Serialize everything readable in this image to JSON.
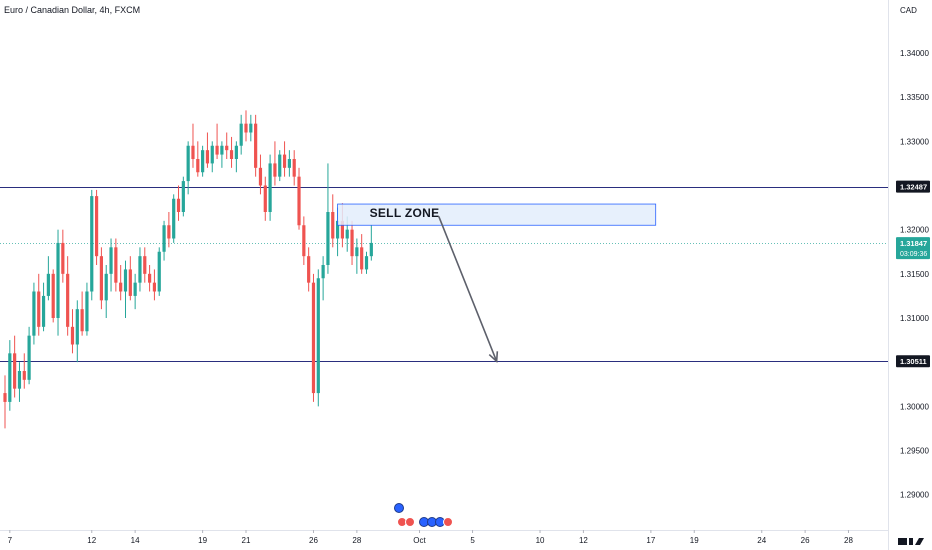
{
  "symbol_title": "Euro / Canadian Dollar, 4h, FXCM",
  "currency_label": "CAD",
  "colors": {
    "up": "#26a69a",
    "down": "#ef5350",
    "hline": "#2a2e7e",
    "zone_fill": "#e3edfc",
    "zone_stroke": "#2962ff",
    "arrow": "#5d606b",
    "price_tag": "#26a69a",
    "level_tag": "#131722"
  },
  "chart_data": {
    "type": "candlestick",
    "y_axis": {
      "min": 1.286,
      "max": 1.346,
      "ticks": [
        "1.34000",
        "1.33500",
        "1.33000",
        "1.32000",
        "1.31500",
        "1.31000",
        "1.30000",
        "1.29500",
        "1.29000"
      ],
      "tick_values": [
        1.34,
        1.335,
        1.33,
        1.32,
        1.315,
        1.31,
        1.3,
        1.295,
        1.29
      ]
    },
    "x_axis": {
      "ticks": [
        "7",
        "12",
        "14",
        "19",
        "21",
        "26",
        "28",
        "Oct",
        "5",
        "10",
        "12",
        "17",
        "19",
        "24",
        "26",
        "28"
      ],
      "tick_index": [
        1,
        18,
        27,
        41,
        50,
        64,
        73,
        86,
        97,
        111,
        120,
        134,
        143,
        157,
        166,
        175
      ]
    },
    "horizontal_levels": [
      {
        "label": "1.32487",
        "value": 1.32487
      },
      {
        "label": "1.30511",
        "value": 1.30511
      }
    ],
    "current_price": {
      "label": "1.31847",
      "countdown": "03:09:36",
      "value": 1.31847
    },
    "sell_zone": {
      "label": "SELL ZONE",
      "from_index": 69,
      "to_index": 135,
      "top": 1.3229,
      "bottom": 1.3205
    },
    "projection_arrow": {
      "from_index": 90,
      "from_value": 1.3215,
      "to_index": 102,
      "to_value": 1.3051
    },
    "candles": [
      [
        1.3015,
        1.3035,
        1.2975,
        1.3005
      ],
      [
        1.3005,
        1.3075,
        1.2995,
        1.306
      ],
      [
        1.306,
        1.308,
        1.301,
        1.302
      ],
      [
        1.302,
        1.305,
        1.3005,
        1.304
      ],
      [
        1.304,
        1.306,
        1.302,
        1.303
      ],
      [
        1.303,
        1.309,
        1.3025,
        1.308
      ],
      [
        1.308,
        1.314,
        1.307,
        1.313
      ],
      [
        1.313,
        1.315,
        1.308,
        1.309
      ],
      [
        1.309,
        1.314,
        1.3085,
        1.3125
      ],
      [
        1.3125,
        1.317,
        1.312,
        1.315
      ],
      [
        1.315,
        1.3155,
        1.3095,
        1.31
      ],
      [
        1.31,
        1.32,
        1.308,
        1.3185
      ],
      [
        1.3185,
        1.32,
        1.314,
        1.315
      ],
      [
        1.315,
        1.317,
        1.308,
        1.309
      ],
      [
        1.309,
        1.311,
        1.306,
        1.307
      ],
      [
        1.307,
        1.312,
        1.305,
        1.311
      ],
      [
        1.311,
        1.313,
        1.308,
        1.3085
      ],
      [
        1.3085,
        1.314,
        1.308,
        1.313
      ],
      [
        1.313,
        1.3245,
        1.312,
        1.3238
      ],
      [
        1.3238,
        1.3245,
        1.316,
        1.317
      ],
      [
        1.317,
        1.318,
        1.311,
        1.312
      ],
      [
        1.312,
        1.316,
        1.31,
        1.315
      ],
      [
        1.315,
        1.319,
        1.313,
        1.318
      ],
      [
        1.318,
        1.319,
        1.313,
        1.314
      ],
      [
        1.314,
        1.316,
        1.312,
        1.313
      ],
      [
        1.313,
        1.3165,
        1.31,
        1.3155
      ],
      [
        1.3155,
        1.317,
        1.312,
        1.3125
      ],
      [
        1.3125,
        1.315,
        1.311,
        1.314
      ],
      [
        1.314,
        1.318,
        1.313,
        1.317
      ],
      [
        1.317,
        1.318,
        1.314,
        1.315
      ],
      [
        1.315,
        1.316,
        1.313,
        1.314
      ],
      [
        1.314,
        1.3155,
        1.312,
        1.313
      ],
      [
        1.313,
        1.318,
        1.3125,
        1.3175
      ],
      [
        1.3175,
        1.321,
        1.3165,
        1.3205
      ],
      [
        1.3205,
        1.322,
        1.318,
        1.319
      ],
      [
        1.319,
        1.324,
        1.3185,
        1.3235
      ],
      [
        1.3235,
        1.325,
        1.321,
        1.322
      ],
      [
        1.322,
        1.326,
        1.3215,
        1.3255
      ],
      [
        1.3255,
        1.33,
        1.324,
        1.3295
      ],
      [
        1.3295,
        1.332,
        1.327,
        1.328
      ],
      [
        1.328,
        1.33,
        1.326,
        1.3265
      ],
      [
        1.3265,
        1.3295,
        1.326,
        1.329
      ],
      [
        1.329,
        1.331,
        1.327,
        1.3275
      ],
      [
        1.3275,
        1.33,
        1.3265,
        1.3295
      ],
      [
        1.3295,
        1.332,
        1.328,
        1.3285
      ],
      [
        1.3285,
        1.33,
        1.327,
        1.3295
      ],
      [
        1.3295,
        1.331,
        1.328,
        1.329
      ],
      [
        1.329,
        1.3305,
        1.327,
        1.328
      ],
      [
        1.328,
        1.33,
        1.3265,
        1.3295
      ],
      [
        1.3295,
        1.333,
        1.3285,
        1.332
      ],
      [
        1.332,
        1.3335,
        1.33,
        1.331
      ],
      [
        1.331,
        1.333,
        1.33,
        1.332
      ],
      [
        1.332,
        1.333,
        1.326,
        1.327
      ],
      [
        1.327,
        1.3285,
        1.324,
        1.325
      ],
      [
        1.325,
        1.326,
        1.321,
        1.322
      ],
      [
        1.322,
        1.3285,
        1.321,
        1.3275
      ],
      [
        1.3275,
        1.33,
        1.325,
        1.326
      ],
      [
        1.326,
        1.329,
        1.3255,
        1.3285
      ],
      [
        1.3285,
        1.33,
        1.326,
        1.327
      ],
      [
        1.327,
        1.329,
        1.326,
        1.328
      ],
      [
        1.328,
        1.329,
        1.325,
        1.326
      ],
      [
        1.326,
        1.327,
        1.32,
        1.3205
      ],
      [
        1.3205,
        1.3215,
        1.316,
        1.317
      ],
      [
        1.317,
        1.318,
        1.313,
        1.314
      ],
      [
        1.314,
        1.315,
        1.3005,
        1.3015
      ],
      [
        1.3015,
        1.3155,
        1.3,
        1.3145
      ],
      [
        1.3145,
        1.317,
        1.312,
        1.316
      ],
      [
        1.316,
        1.3275,
        1.315,
        1.322
      ],
      [
        1.322,
        1.324,
        1.318,
        1.319
      ],
      [
        1.319,
        1.3225,
        1.317,
        1.321
      ],
      [
        1.321,
        1.323,
        1.318,
        1.319
      ],
      [
        1.319,
        1.3215,
        1.3175,
        1.32
      ],
      [
        1.32,
        1.321,
        1.316,
        1.317
      ],
      [
        1.317,
        1.319,
        1.315,
        1.318
      ],
      [
        1.318,
        1.3195,
        1.315,
        1.3155
      ],
      [
        1.3155,
        1.3175,
        1.315,
        1.317
      ],
      [
        1.317,
        1.3205,
        1.3165,
        1.3185
      ]
    ]
  }
}
